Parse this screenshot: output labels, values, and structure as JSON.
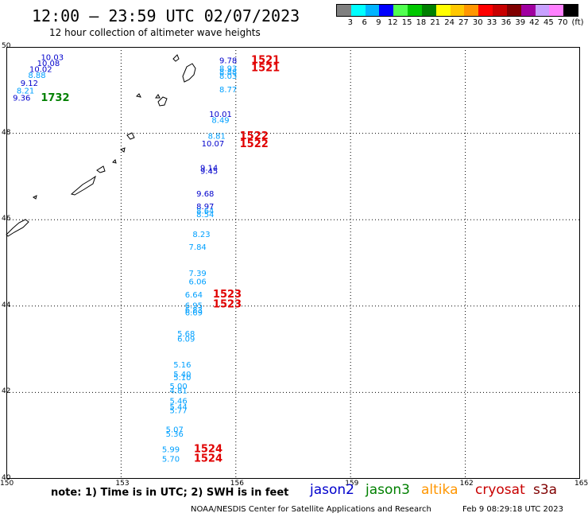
{
  "header": {
    "title": "12:00 – 23:59 UTC 02/07/2023",
    "subtitle": "12 hour collection of altimeter wave heights"
  },
  "legend": {
    "unit": "(ft)",
    "colors": [
      "#808080",
      "#00ffff",
      "#00b4ff",
      "#0000ff",
      "#50ff50",
      "#00c800",
      "#008000",
      "#ffff00",
      "#ffc800",
      "#ff9600",
      "#ff0000",
      "#c80000",
      "#800000",
      "#a000a0",
      "#c8a0ff",
      "#ff80ff",
      "#000000"
    ],
    "labels": [
      "3",
      "6",
      "9",
      "12",
      "15",
      "18",
      "21",
      "24",
      "27",
      "30",
      "33",
      "36",
      "39",
      "42",
      "45",
      "70"
    ]
  },
  "axes": {
    "x_ticks": [
      "150",
      "153",
      "156",
      "159",
      "162",
      "165"
    ],
    "y_ticks": [
      "50",
      "48",
      "46",
      "44",
      "42",
      "40"
    ],
    "xlim": [
      150,
      165
    ],
    "ylim": [
      40,
      50
    ],
    "grid": "dotted"
  },
  "chart_data": {
    "type": "scatter",
    "x_unit": "longitude (deg E)",
    "y_unit": "latitude (deg N)",
    "swh_points": [
      {
        "lon": 151.2,
        "lat": 49.7,
        "value": "10.03",
        "color": "#0000cc"
      },
      {
        "lon": 151.1,
        "lat": 49.56,
        "value": "10.08",
        "color": "#0000cc"
      },
      {
        "lon": 150.9,
        "lat": 49.42,
        "value": "10.02",
        "color": "#0000cc"
      },
      {
        "lon": 150.8,
        "lat": 49.28,
        "value": "8.88",
        "color": "#00a0ff"
      },
      {
        "lon": 150.6,
        "lat": 49.1,
        "value": "9.12",
        "color": "#0000cc"
      },
      {
        "lon": 150.5,
        "lat": 48.92,
        "value": "8.21",
        "color": "#00a0ff"
      },
      {
        "lon": 150.4,
        "lat": 48.76,
        "value": "9.36",
        "color": "#0000cc"
      },
      {
        "lon": 155.8,
        "lat": 49.62,
        "value": "9.78",
        "color": "#0000cc"
      },
      {
        "lon": 155.8,
        "lat": 49.44,
        "value": "8.93",
        "color": "#00a0ff"
      },
      {
        "lon": 155.8,
        "lat": 49.36,
        "value": "8.88",
        "color": "#00a0ff"
      },
      {
        "lon": 155.8,
        "lat": 49.26,
        "value": "8.03",
        "color": "#00a0ff"
      },
      {
        "lon": 155.8,
        "lat": 48.95,
        "value": "8.77",
        "color": "#00a0ff"
      },
      {
        "lon": 155.6,
        "lat": 48.38,
        "value": "10.01",
        "color": "#0000cc"
      },
      {
        "lon": 155.6,
        "lat": 48.24,
        "value": "8.49",
        "color": "#00a0ff"
      },
      {
        "lon": 155.5,
        "lat": 47.87,
        "value": "8.81",
        "color": "#00a0ff"
      },
      {
        "lon": 155.4,
        "lat": 47.7,
        "value": "10.07",
        "color": "#0000cc"
      },
      {
        "lon": 155.3,
        "lat": 47.14,
        "value": "9.14",
        "color": "#0000cc"
      },
      {
        "lon": 155.3,
        "lat": 47.06,
        "value": "9.45",
        "color": "#0000cc"
      },
      {
        "lon": 155.2,
        "lat": 46.54,
        "value": "9.68",
        "color": "#0000cc"
      },
      {
        "lon": 155.2,
        "lat": 46.24,
        "value": "8.97",
        "color": "#0000cc"
      },
      {
        "lon": 155.2,
        "lat": 46.14,
        "value": "8.64",
        "color": "#00a0ff"
      },
      {
        "lon": 155.2,
        "lat": 46.06,
        "value": "8.54",
        "color": "#00a0ff"
      },
      {
        "lon": 155.1,
        "lat": 45.6,
        "value": "8.23",
        "color": "#00a0ff"
      },
      {
        "lon": 155.0,
        "lat": 45.3,
        "value": "7.84",
        "color": "#00a0ff"
      },
      {
        "lon": 155.0,
        "lat": 44.7,
        "value": "7.39",
        "color": "#00a0ff"
      },
      {
        "lon": 155.0,
        "lat": 44.5,
        "value": "6.06",
        "color": "#00a0ff"
      },
      {
        "lon": 154.9,
        "lat": 44.2,
        "value": "6.64",
        "color": "#00a0ff"
      },
      {
        "lon": 154.9,
        "lat": 43.95,
        "value": "6.95",
        "color": "#00a0ff"
      },
      {
        "lon": 154.9,
        "lat": 43.85,
        "value": "6.83",
        "color": "#00a0ff"
      },
      {
        "lon": 154.9,
        "lat": 43.78,
        "value": "6.69",
        "color": "#00a0ff"
      },
      {
        "lon": 154.7,
        "lat": 43.3,
        "value": "5.68",
        "color": "#00a0ff"
      },
      {
        "lon": 154.7,
        "lat": 43.18,
        "value": "6.09",
        "color": "#00a0ff"
      },
      {
        "lon": 154.6,
        "lat": 42.58,
        "value": "5.16",
        "color": "#00a0ff"
      },
      {
        "lon": 154.6,
        "lat": 42.36,
        "value": "5.40",
        "color": "#00a0ff"
      },
      {
        "lon": 154.6,
        "lat": 42.28,
        "value": "5.10",
        "color": "#00a0ff"
      },
      {
        "lon": 154.5,
        "lat": 42.08,
        "value": "5.00",
        "color": "#00a0ff"
      },
      {
        "lon": 154.5,
        "lat": 41.98,
        "value": "4.81",
        "color": "#00a0ff"
      },
      {
        "lon": 154.5,
        "lat": 41.74,
        "value": "5.46",
        "color": "#00a0ff"
      },
      {
        "lon": 154.5,
        "lat": 41.6,
        "value": "5.44",
        "color": "#00a0ff"
      },
      {
        "lon": 154.5,
        "lat": 41.52,
        "value": "5.77",
        "color": "#00a0ff"
      },
      {
        "lon": 154.4,
        "lat": 41.08,
        "value": "5.07",
        "color": "#00a0ff"
      },
      {
        "lon": 154.4,
        "lat": 40.98,
        "value": "5.36",
        "color": "#00a0ff"
      },
      {
        "lon": 154.3,
        "lat": 40.62,
        "value": "5.99",
        "color": "#00a0ff"
      },
      {
        "lon": 154.3,
        "lat": 40.4,
        "value": "5.70",
        "color": "#00a0ff"
      }
    ],
    "time_labels": [
      {
        "lon": 150.9,
        "lat": 48.75,
        "value": "1732",
        "color": "#008000"
      },
      {
        "lon": 156.4,
        "lat": 49.62,
        "value": "1521",
        "color": "#e00000"
      },
      {
        "lon": 156.4,
        "lat": 49.44,
        "value": "1521",
        "color": "#e00000"
      },
      {
        "lon": 156.1,
        "lat": 47.86,
        "value": "1522",
        "color": "#e00000"
      },
      {
        "lon": 156.1,
        "lat": 47.68,
        "value": "1522",
        "color": "#e00000"
      },
      {
        "lon": 155.4,
        "lat": 44.2,
        "value": "1523",
        "color": "#e00000"
      },
      {
        "lon": 155.4,
        "lat": 43.97,
        "value": "1523",
        "color": "#e00000"
      },
      {
        "lon": 154.9,
        "lat": 40.62,
        "value": "1524",
        "color": "#e00000"
      },
      {
        "lon": 154.9,
        "lat": 40.4,
        "value": "1524",
        "color": "#e00000"
      }
    ]
  },
  "footer": {
    "note": "note:  1) Time is in UTC; 2) SWH is in feet",
    "satellites": [
      {
        "name": "jason2",
        "color": "#0000cc"
      },
      {
        "name": "jason3",
        "color": "#008000"
      },
      {
        "name": "altika",
        "color": "#ff9600"
      },
      {
        "name": "cryosat",
        "color": "#c80000"
      },
      {
        "name": "s3a",
        "color": "#800000"
      }
    ],
    "credit": "NOAA/NESDIS Center for Satellite Applications and Research",
    "timestamp": "Feb  9 08:29:18 UTC 2023"
  }
}
